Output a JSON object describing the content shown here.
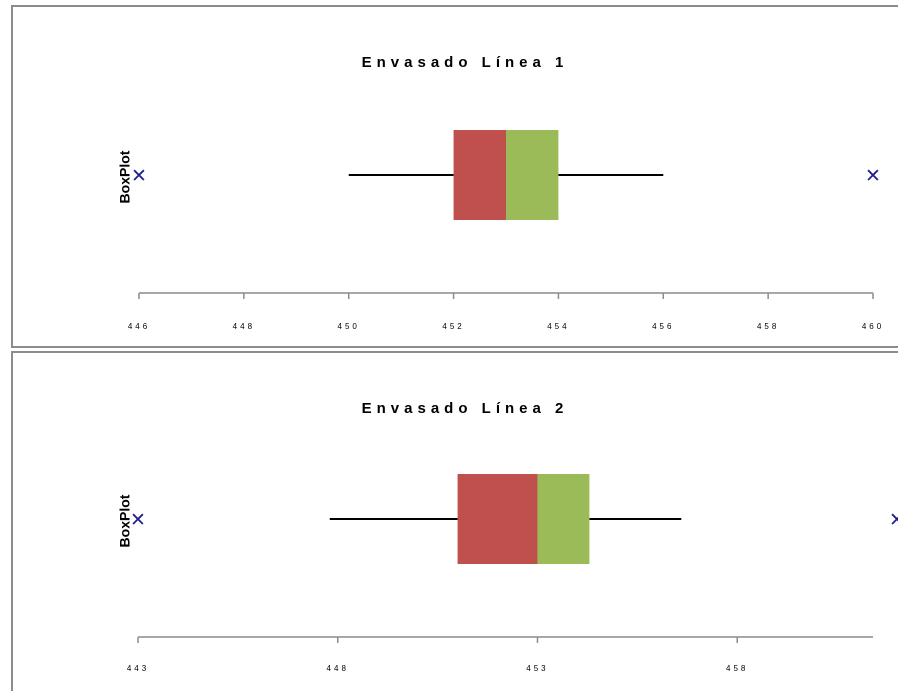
{
  "chart_data": [
    {
      "type": "box",
      "title": "Envasado Línea 1",
      "ylabel": "BoxPlot",
      "xlim": [
        446,
        460
      ],
      "xticks": [
        "446",
        "448",
        "450",
        "452",
        "454",
        "456",
        "458",
        "460"
      ],
      "min": 450,
      "q1": 452,
      "median": 453,
      "q3": 454,
      "max": 456,
      "markers": [
        446,
        460
      ],
      "colors": {
        "lower_box": "#c0504d",
        "upper_box": "#9bbb59",
        "marker": "#1f1f8f"
      }
    },
    {
      "type": "box",
      "title": "Envasado Línea 2",
      "ylabel": "BoxPlot",
      "xlim": [
        443,
        462
      ],
      "xticks": [
        "443",
        "448",
        "453",
        "458"
      ],
      "min": 447.8,
      "q1": 451,
      "median": 453,
      "q3": 454.3,
      "max": 456.6,
      "markers": [
        443,
        462
      ],
      "colors": {
        "lower_box": "#c0504d",
        "upper_box": "#9bbb59",
        "marker": "#1f1f8f"
      }
    }
  ]
}
